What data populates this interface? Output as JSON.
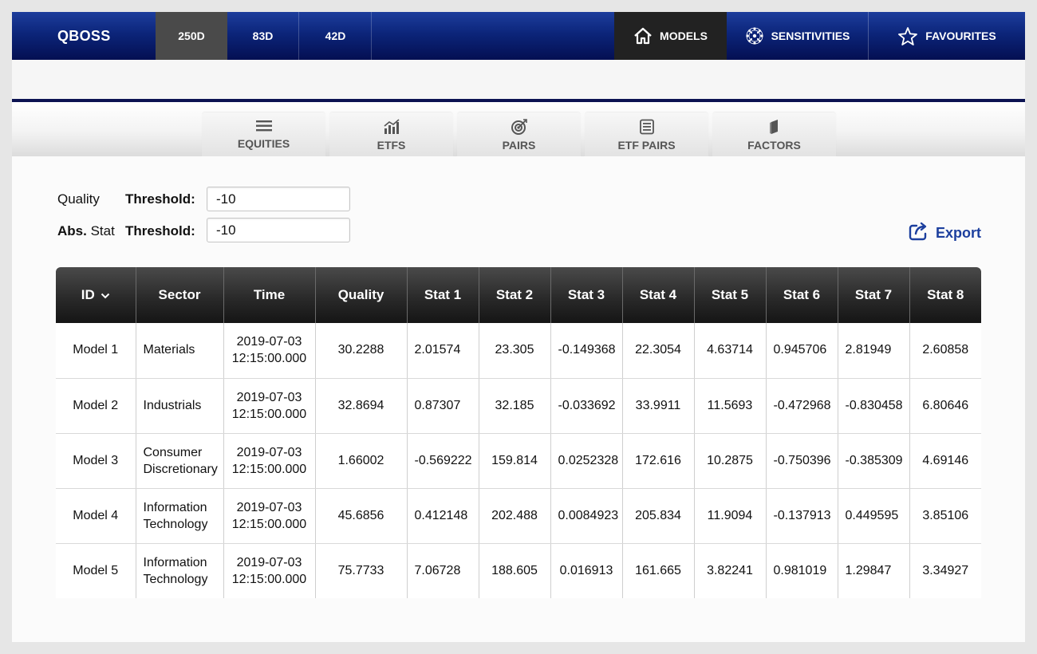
{
  "topbar": {
    "brand": "QBOSS",
    "periods": [
      "250D",
      "83D",
      "42D"
    ],
    "active_period": "250D",
    "nav": [
      {
        "label": "MODELS",
        "icon": "home-icon",
        "active": true
      },
      {
        "label": "SENSITIVITIES",
        "icon": "network-icon",
        "active": false
      },
      {
        "label": "FAVOURITES",
        "icon": "star-icon",
        "active": false
      }
    ]
  },
  "tabs": [
    {
      "label": "EQUITIES",
      "icon": "list-lines-icon"
    },
    {
      "label": "ETFS",
      "icon": "bar-chart-icon"
    },
    {
      "label": "PAIRS",
      "icon": "target-icon"
    },
    {
      "label": "ETF PAIRS",
      "icon": "list-box-icon"
    },
    {
      "label": "FACTORS",
      "icon": "pages-icon"
    }
  ],
  "filters": {
    "quality_prefix": "Quality",
    "stat_prefix_bold": "Abs.",
    "stat_prefix": " Stat",
    "threshold_label": "Threshold:",
    "quality_threshold": "-10",
    "stat_threshold": "-10"
  },
  "export_label": "Export",
  "table": {
    "headers": [
      "ID",
      "Sector",
      "Time",
      "Quality",
      "Stat 1",
      "Stat 2",
      "Stat 3",
      "Stat 4",
      "Stat 5",
      "Stat 6",
      "Stat 7",
      "Stat 8"
    ],
    "rows": [
      {
        "id": "Model 1",
        "sector": "Materials",
        "time_date": "2019-07-03",
        "time_clock": "12:15:00.000",
        "quality": "30.2288",
        "stats": [
          "2.01574",
          "23.305",
          "-0.149368",
          "22.3054",
          "4.63714",
          "0.945706",
          "2.81949",
          "2.60858"
        ]
      },
      {
        "id": "Model 2",
        "sector": "Industrials",
        "time_date": "2019-07-03",
        "time_clock": "12:15:00.000",
        "quality": "32.8694",
        "stats": [
          "0.87307",
          "32.185",
          "-0.033692",
          "33.9911",
          "11.5693",
          "-0.472968",
          "-0.830458",
          "6.80646"
        ]
      },
      {
        "id": "Model 3",
        "sector": "Consumer Discretionary",
        "time_date": "2019-07-03",
        "time_clock": "12:15:00.000",
        "quality": "1.66002",
        "stats": [
          "-0.569222",
          "159.814",
          "0.0252328",
          "172.616",
          "10.2875",
          "-0.750396",
          "-0.385309",
          "4.69146"
        ]
      },
      {
        "id": "Model 4",
        "sector": "Information Technology",
        "time_date": "2019-07-03",
        "time_clock": "12:15:00.000",
        "quality": "45.6856",
        "stats": [
          "0.412148",
          "202.488",
          "0.0084923",
          "205.834",
          "11.9094",
          "-0.137913",
          "0.449595",
          "3.85106"
        ]
      },
      {
        "id": "Model 5",
        "sector": "Information Technology",
        "time_date": "2019-07-03",
        "time_clock": "12:15:00.000",
        "quality": "75.7733",
        "stats": [
          "7.06728",
          "188.605",
          "0.016913",
          "161.665",
          "3.82241",
          "0.981019",
          "1.29847",
          "3.34927"
        ]
      }
    ]
  },
  "colors": {
    "nav_gradient_top": "#1d3d9c",
    "nav_gradient_bottom": "#040f52",
    "accent_link": "#1c3f9e",
    "header_dark": "#1f1f1f"
  }
}
